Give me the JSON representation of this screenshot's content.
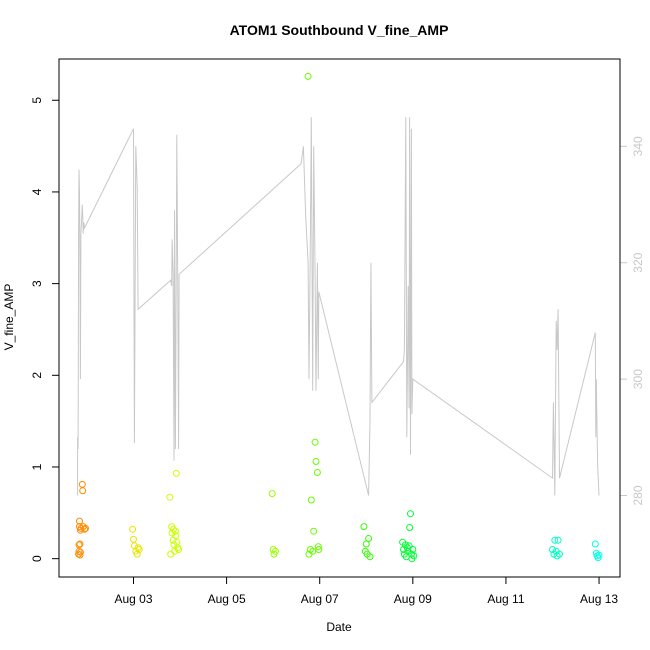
{
  "chart_data": {
    "type": "scatter",
    "title": "ATOM1 Southbound V_fine_AMP",
    "xlabel": "Date",
    "ylabel": "V_fine_AMP",
    "x_tick_labels": [
      "Aug 03",
      "Aug 05",
      "Aug 07",
      "Aug 09",
      "Aug 11",
      "Aug 13"
    ],
    "x_tick_days": [
      3,
      5,
      7,
      9,
      11,
      13
    ],
    "xlim_days": [
      1.4,
      13.45
    ],
    "ylim": [
      -0.2,
      5.45
    ],
    "y_ticks": [
      0,
      1,
      2,
      3,
      4,
      5
    ],
    "y2lim": [
      266,
      355
    ],
    "y2_ticks": [
      280,
      300,
      320,
      340
    ],
    "grid": false,
    "legend": "none",
    "point_colors": {
      "aug01": "#ff8c00",
      "aug03": "#e6e600",
      "aug04": "#ccff00",
      "aug06": "#99ff00",
      "aug07": "#66ff00",
      "aug08": "#33ff00",
      "aug09": "#00ff33",
      "aug12": "#00ffbf",
      "aug13": "#00ffe5"
    },
    "series": [
      {
        "color_key": "aug01",
        "x": [
          1.82,
          1.83,
          1.83,
          1.84,
          1.84,
          1.85,
          1.85,
          1.86,
          1.86,
          1.87,
          1.9,
          1.91,
          1.92,
          1.95,
          1.97
        ],
        "y": [
          0.05,
          0.08,
          0.15,
          0.35,
          0.41,
          0.16,
          0.04,
          0.07,
          0.31,
          0.33,
          0.81,
          0.74,
          0.35,
          0.32,
          0.33
        ]
      },
      {
        "color_key": "aug03",
        "x": [
          2.98,
          3.0,
          3.02,
          3.05,
          3.08,
          3.1,
          3.12
        ],
        "y": [
          0.32,
          0.21,
          0.14,
          0.08,
          0.05,
          0.12,
          0.1
        ]
      },
      {
        "color_key": "aug04",
        "x": [
          3.78,
          3.8,
          3.82,
          3.83,
          3.85,
          3.86,
          3.87,
          3.88,
          3.9,
          3.91,
          3.92,
          3.93,
          3.95,
          3.97
        ],
        "y": [
          0.67,
          0.05,
          0.35,
          0.28,
          0.2,
          0.32,
          0.15,
          0.08,
          0.3,
          0.25,
          0.93,
          0.18,
          0.12,
          0.1
        ]
      },
      {
        "color_key": "aug06",
        "x": [
          5.98,
          6.0,
          6.02,
          6.05
        ],
        "y": [
          0.71,
          0.1,
          0.05,
          0.08
        ]
      },
      {
        "color_key": "aug07",
        "x": [
          6.75,
          6.77,
          6.8,
          6.82,
          6.85,
          6.87,
          6.9,
          6.92,
          6.95,
          6.97,
          6.98
        ],
        "y": [
          5.26,
          0.05,
          0.1,
          0.64,
          0.08,
          0.3,
          1.27,
          1.06,
          0.94,
          0.13,
          0.1
        ]
      },
      {
        "color_key": "aug08",
        "x": [
          7.95,
          7.98,
          8.0,
          8.02,
          8.05,
          8.08
        ],
        "y": [
          0.35,
          0.08,
          0.16,
          0.05,
          0.22,
          0.02
        ]
      },
      {
        "color_key": "aug09",
        "x": [
          8.78,
          8.8,
          8.82,
          8.84,
          8.86,
          8.88,
          8.9,
          8.92,
          8.93,
          8.95,
          8.97,
          8.98,
          9.0,
          9.02
        ],
        "y": [
          0.18,
          0.1,
          0.05,
          0.15,
          0.02,
          0.12,
          0.08,
          0.14,
          0.34,
          0.49,
          0.05,
          0.0,
          0.1,
          0.03
        ]
      },
      {
        "color_key": "aug12",
        "x": [
          12.0,
          12.03,
          12.05,
          12.08,
          12.1,
          12.12,
          12.15
        ],
        "y": [
          0.1,
          0.05,
          0.2,
          0.08,
          0.03,
          0.2,
          0.05
        ]
      },
      {
        "color_key": "aug13",
        "x": [
          12.92,
          12.94,
          12.96,
          12.98,
          13.0
        ],
        "y": [
          0.16,
          0.06,
          0.03,
          0.01,
          0.04
        ]
      }
    ],
    "line_series": {
      "color": "#c8c8c8",
      "axis": "right",
      "x": [
        1.8,
        1.8,
        1.81,
        1.82,
        1.83,
        1.84,
        1.85,
        1.86,
        1.87,
        1.9,
        1.91,
        1.92,
        1.93,
        1.95,
        3.0,
        3.02,
        3.05,
        3.08,
        3.1,
        3.8,
        3.82,
        3.83,
        3.85,
        3.87,
        3.88,
        3.9,
        3.92,
        3.93,
        3.95,
        3.97,
        3.98,
        6.6,
        6.65,
        6.7,
        6.75,
        6.77,
        6.8,
        6.82,
        6.85,
        6.87,
        6.9,
        6.92,
        6.95,
        6.97,
        6.98,
        8.05,
        8.08,
        8.1,
        8.12,
        8.8,
        8.82,
        8.85,
        8.87,
        8.9,
        8.92,
        8.93,
        8.95,
        8.97,
        8.98,
        9.0,
        12.0,
        12.02,
        12.05,
        12.08,
        12.1,
        12.12,
        12.15,
        12.92,
        12.93,
        12.94,
        12.95,
        12.97,
        13.0
      ],
      "y": [
        280,
        290,
        288,
        325,
        336,
        332,
        318,
        300,
        325,
        330,
        328,
        325,
        327,
        326,
        343,
        289,
        340,
        333,
        312,
        317,
        316,
        324,
        318,
        286,
        329,
        288,
        321,
        342,
        318,
        288,
        318,
        337,
        340,
        328,
        320,
        300,
        325,
        345,
        298,
        340,
        318,
        298,
        320,
        300,
        315,
        280,
        293,
        320,
        296,
        303,
        305,
        345,
        290,
        316,
        295,
        345,
        287,
        343,
        294,
        300,
        283,
        296,
        280,
        310,
        305,
        312,
        283,
        308,
        290,
        300,
        295,
        285,
        280
      ]
    }
  }
}
